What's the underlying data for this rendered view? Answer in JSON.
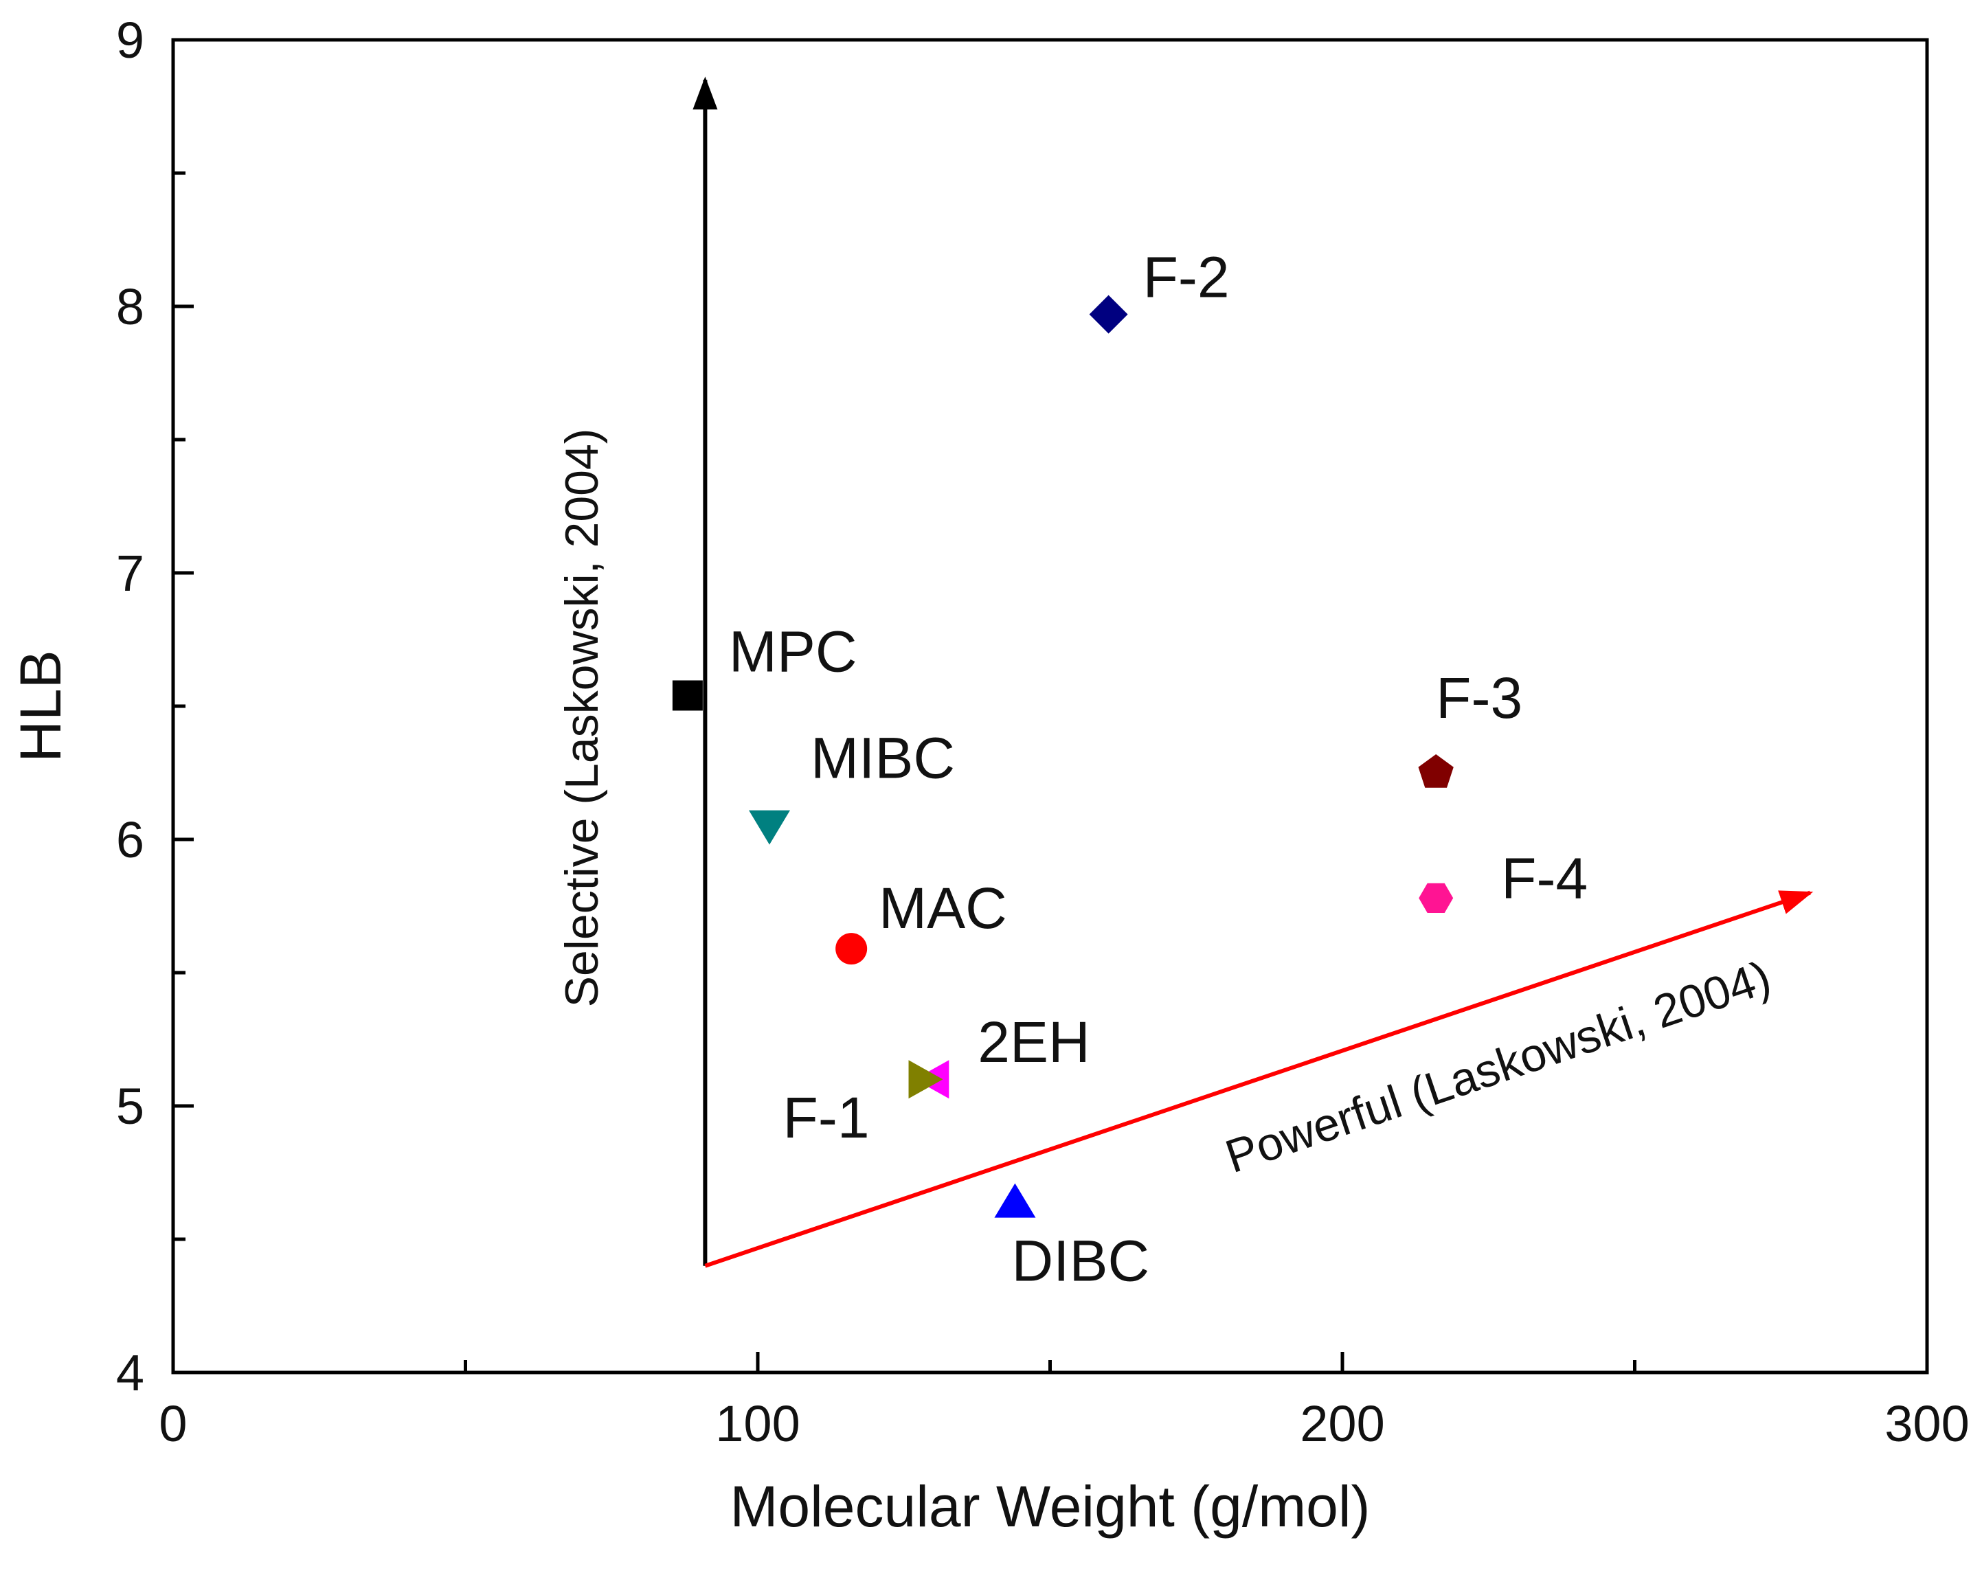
{
  "chart_data": {
    "type": "scatter",
    "title": "",
    "xlabel": "Molecular Weight (g/mol)",
    "ylabel": "HLB",
    "xlim": [
      0,
      300
    ],
    "ylim": [
      4,
      9
    ],
    "xticks": [
      "0",
      "100",
      "200",
      "300"
    ],
    "yticks": [
      "4",
      "5",
      "6",
      "7",
      "8",
      "9"
    ],
    "grid": false,
    "legend": "none",
    "points": [
      {
        "label": "MPC",
        "x": 88,
        "y": 6.54,
        "marker": "square",
        "color": "#000000"
      },
      {
        "label": "MIBC",
        "x": 102,
        "y": 6.05,
        "marker": "triangle-down",
        "color": "#008080"
      },
      {
        "label": "MAC",
        "x": 116,
        "y": 5.59,
        "marker": "circle",
        "color": "#ff0000"
      },
      {
        "label": "2EH",
        "x": 130,
        "y": 5.1,
        "marker": "triangle-left",
        "color": "#ff00ff"
      },
      {
        "label": "F-1",
        "x": 128.5,
        "y": 5.1,
        "marker": "triangle-right",
        "color": "#808000"
      },
      {
        "label": "DIBC",
        "x": 144,
        "y": 4.64,
        "marker": "triangle-up",
        "color": "#0000ff"
      },
      {
        "label": "F-2",
        "x": 160,
        "y": 7.97,
        "marker": "diamond",
        "color": "#000080"
      },
      {
        "label": "F-3",
        "x": 216,
        "y": 6.25,
        "marker": "pentagon",
        "color": "#800000"
      },
      {
        "label": "F-4",
        "x": 216,
        "y": 5.78,
        "marker": "hexagon",
        "color": "#ff1493"
      }
    ],
    "annotations": [
      {
        "text": "Selective (Laskowski, 2004)",
        "from": [
          91,
          4.4
        ],
        "to": [
          91,
          8.85
        ],
        "color": "#000000"
      },
      {
        "text": "Powerful (Laskowski, 2004)",
        "from": [
          91,
          4.4
        ],
        "to": [
          280,
          5.8
        ],
        "color": "#ff0000"
      }
    ]
  }
}
